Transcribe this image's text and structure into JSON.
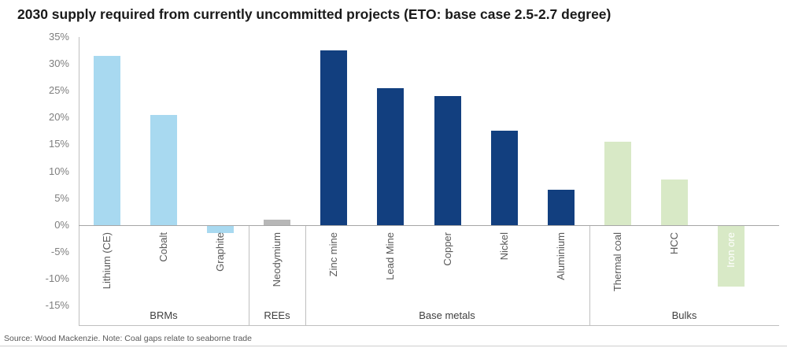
{
  "title": "2030 supply required from currently uncommitted projects (ETO: base case 2.5-2.7 degree)",
  "source_note": "Source: Wood Mackenzie. Note: Coal gaps relate to seaborne trade",
  "chart_data": {
    "type": "bar",
    "title": "2030 supply required from currently uncommitted projects (ETO: base case 2.5-2.7 degree)",
    "xlabel": "",
    "ylabel": "",
    "ylim": [
      -15,
      35
    ],
    "grid": false,
    "legend": false,
    "yticks": [
      "35%",
      "30%",
      "25%",
      "20%",
      "15%",
      "10%",
      "5%",
      "0%",
      "-5%",
      "-10%",
      "-15%"
    ],
    "colors": {
      "axis_line": "#bfbfbf",
      "zero_line": "#a6a6a6",
      "tick_label": "#7f7f7f",
      "category_label": "#595959",
      "group_label": "#404040"
    },
    "groups": [
      {
        "label": "BRMs",
        "color": "#a8d9f0",
        "items": [
          {
            "label": "Lithium (CE)",
            "value": 31.5
          },
          {
            "label": "Cobalt",
            "value": 20.5
          },
          {
            "label": "Graphite",
            "value": -1.5
          }
        ]
      },
      {
        "label": "REEs",
        "color": "#b7b7b7",
        "items": [
          {
            "label": "Neodymium",
            "value": 1
          }
        ]
      },
      {
        "label": "Base metals",
        "color": "#123f7f",
        "items": [
          {
            "label": "Zinc mine",
            "value": 32.5
          },
          {
            "label": "Lead Mine",
            "value": 25.5
          },
          {
            "label": "Copper",
            "value": 24
          },
          {
            "label": "Nickel",
            "value": 17.5
          },
          {
            "label": "Aluminium",
            "value": 6.5
          }
        ]
      },
      {
        "label": "Bulks",
        "color": "#d8e9c6",
        "items": [
          {
            "label": "Thermal coal",
            "value": 15.5
          },
          {
            "label": "HCC",
            "value": 8.5
          },
          {
            "label": "Iron ore",
            "value": -11.5,
            "label_color": "#ffffff"
          }
        ]
      }
    ]
  }
}
